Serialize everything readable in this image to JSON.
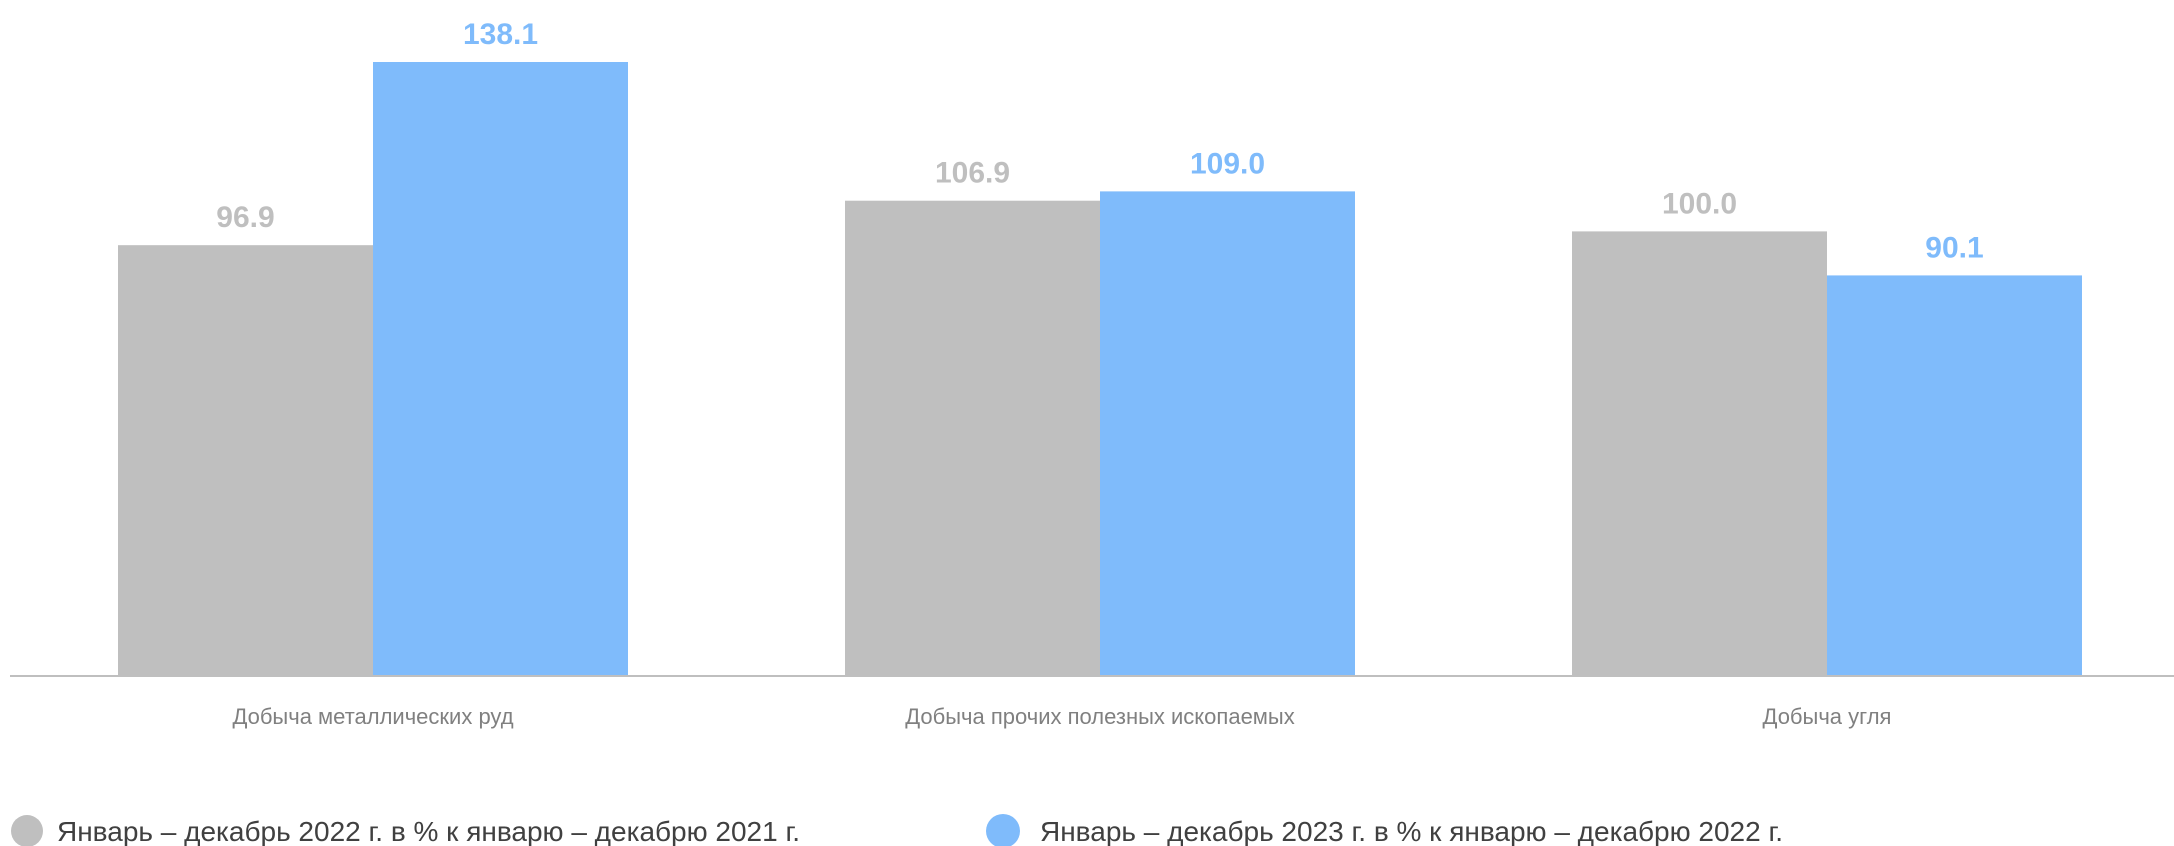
{
  "chart_data": {
    "type": "bar",
    "title": "",
    "xlabel": "",
    "ylabel": "",
    "ylim": [
      0,
      145
    ],
    "grid": false,
    "legend_position": "bottom",
    "categories": [
      "Добыча металлических руд",
      "Добыча прочих полезных ископаемых",
      "Добыча угля"
    ],
    "series": [
      {
        "name": "Январь – декабрь 2022 г. в % к январю – декабрю 2021 г.",
        "color": "#bfbfbf",
        "label_color": "#bfbfbf",
        "values": [
          96.9,
          106.9,
          100.0
        ],
        "labels": [
          "96.9",
          "106.9",
          "100.0"
        ]
      },
      {
        "name": "Январь – декабрь 2023 г. в % к январю – декабрю 2022 г.",
        "color": "#7fbbfb",
        "label_color": "#7fbbfb",
        "values": [
          138.1,
          109.0,
          90.1
        ],
        "labels": [
          "138.1",
          "109.0",
          "90.1"
        ]
      }
    ]
  }
}
